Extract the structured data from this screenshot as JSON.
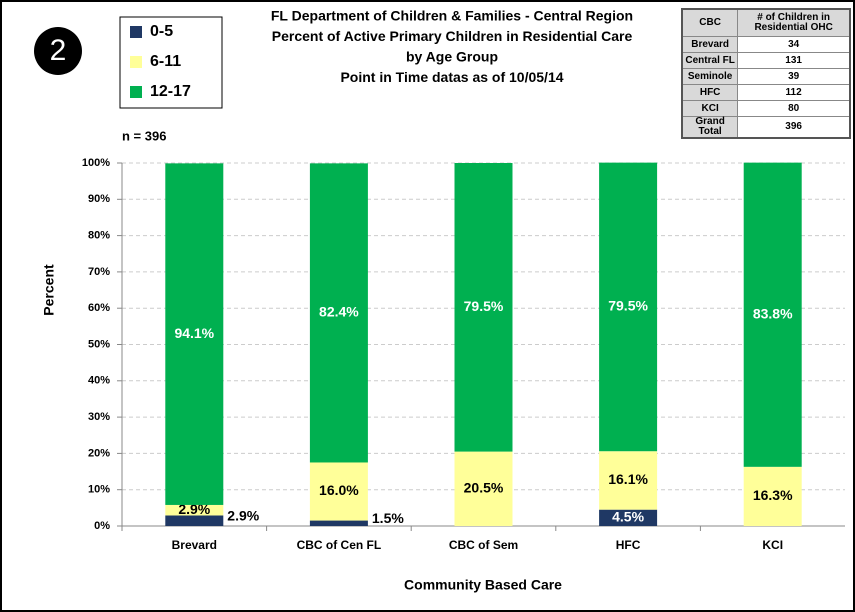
{
  "badge": "2",
  "table": {
    "header": [
      "CBC",
      "# of Children in Residential OHC"
    ],
    "rows": [
      [
        "Brevard",
        34
      ],
      [
        "Central FL",
        131
      ],
      [
        "Seminole",
        39
      ],
      [
        "HFC",
        112
      ],
      [
        "KCI",
        80
      ],
      [
        "Grand Total",
        396
      ]
    ]
  },
  "chart_data": {
    "type": "stacked_bar",
    "title": [
      "FL Department of Children & Families - Central Region",
      "Percent of Active Primary Children in Residential Care",
      "by Age Group",
      "Point in Time datas as of 10/05/14"
    ],
    "annotation": "n =  396",
    "x_label": "Community Based Care",
    "y_label": "Percent",
    "categories": [
      "Brevard",
      "CBC of Cen FL",
      "CBC of Sem",
      "HFC",
      "KCI"
    ],
    "series": [
      {
        "name": "0-5",
        "color": "#1f3864",
        "values": [
          2.9,
          1.5,
          0,
          4.5,
          0
        ],
        "value_labels": [
          "2.9%",
          "1.5%",
          null,
          "4.5%",
          null
        ]
      },
      {
        "name": "6-11",
        "color": "#ffff99",
        "values": [
          2.9,
          16.0,
          20.5,
          16.1,
          16.3
        ],
        "value_labels": [
          "2.9%",
          "16.0%",
          "20.5%",
          "16.1%",
          "16.3%"
        ]
      },
      {
        "name": "12-17",
        "color": "#00b050",
        "values": [
          94.1,
          82.4,
          79.5,
          79.5,
          83.8
        ],
        "value_labels": [
          "94.1%",
          "82.4%",
          "79.5%",
          "79.5%",
          "83.8%"
        ]
      }
    ],
    "ylim": [
      0,
      100
    ],
    "yticks": [
      {
        "value": 0,
        "label": "0%"
      },
      {
        "value": 10,
        "label": "10%"
      },
      {
        "value": 20,
        "label": "20%"
      },
      {
        "value": 30,
        "label": "30%"
      },
      {
        "value": 40,
        "label": "40%"
      },
      {
        "value": 50,
        "label": "50%"
      },
      {
        "value": 60,
        "label": "60%"
      },
      {
        "value": 70,
        "label": "70%"
      },
      {
        "value": 80,
        "label": "80%"
      },
      {
        "value": 90,
        "label": "90%"
      },
      {
        "value": 100,
        "label": "100%"
      }
    ],
    "grid": true
  }
}
